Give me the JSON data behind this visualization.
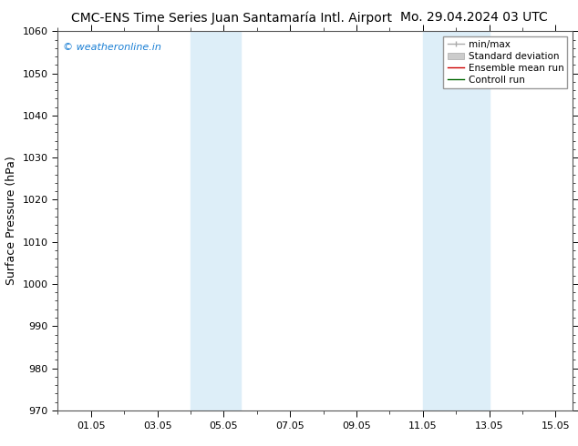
{
  "title_left": "CMC-ENS Time Series Juan Santamaría Intl. Airport",
  "title_right": "Mo. 29.04.2024 03 UTC",
  "ylabel": "Surface Pressure (hPa)",
  "ylim": [
    970,
    1060
  ],
  "yticks": [
    970,
    980,
    990,
    1000,
    1010,
    1020,
    1030,
    1040,
    1050,
    1060
  ],
  "xlim": [
    0.0,
    15.5
  ],
  "xtick_labels": [
    "01.05",
    "03.05",
    "05.05",
    "07.05",
    "09.05",
    "11.05",
    "13.05",
    "15.05"
  ],
  "xtick_positions": [
    1,
    3,
    5,
    7,
    9,
    11,
    13,
    15
  ],
  "watermark": "© weatheronline.in",
  "watermark_color": "#1a7fd4",
  "bg_color": "#ffffff",
  "plot_bg_color": "#ffffff",
  "band_color": "#ddeef8",
  "bands": [
    {
      "x_start": 4.0,
      "x_end": 5.5
    },
    {
      "x_start": 11.0,
      "x_end": 13.0
    }
  ],
  "title_fontsize": 10,
  "ylabel_fontsize": 9,
  "tick_fontsize": 8,
  "watermark_fontsize": 8,
  "legend_fontsize": 7.5
}
